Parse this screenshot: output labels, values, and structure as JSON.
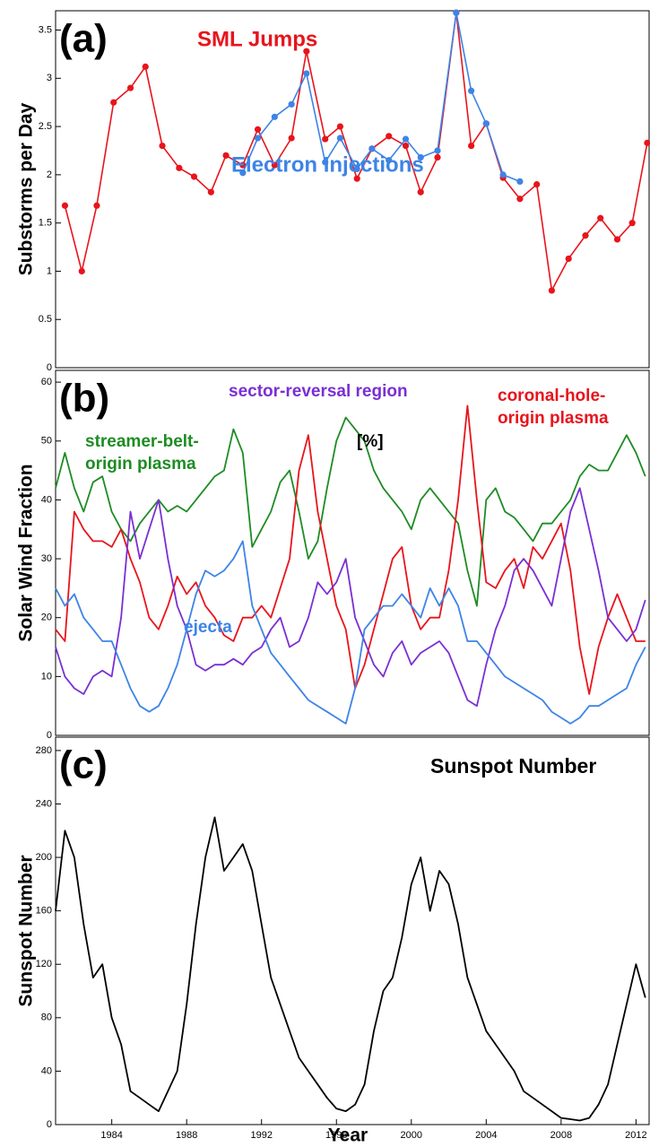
{
  "chart_data": [
    {
      "type": "line",
      "panel_label": "(a)",
      "ylabel": "Substorms per Day",
      "xlim": [
        1981,
        2012.7
      ],
      "ylim": [
        0,
        3.7
      ],
      "yticks": [
        0,
        0.5,
        1,
        1.5,
        2,
        2.5,
        3,
        3.5
      ],
      "markers": true,
      "annotations": [
        {
          "text": "SML Jumps",
          "color": "#e8141c"
        },
        {
          "text": "Electron Injections",
          "color": "#3d84e6"
        }
      ],
      "series": [
        {
          "name": "SML Jumps",
          "color": "#e8141c",
          "x": [
            1981.5,
            1982.4,
            1983.2,
            1984.1,
            1985.0,
            1985.8,
            1986.7,
            1987.6,
            1988.4,
            1989.3,
            1990.1,
            1991.0,
            1991.8,
            1992.7,
            1993.6,
            1994.4,
            1995.4,
            1996.2,
            1997.1,
            1997.9,
            1998.8,
            1999.7,
            2000.5,
            2001.4,
            2002.4,
            2003.2,
            2004.0,
            2004.9,
            2005.8,
            2006.7,
            2007.5,
            2008.4,
            2009.3,
            2010.1,
            2011.0,
            2011.8,
            2012.6
          ],
          "values": [
            1.68,
            1.0,
            1.68,
            2.75,
            2.9,
            3.12,
            2.3,
            2.07,
            1.98,
            1.82,
            2.2,
            2.1,
            2.47,
            2.1,
            2.38,
            3.28,
            2.37,
            2.5,
            1.96,
            2.27,
            2.4,
            2.3,
            1.82,
            2.18,
            3.68,
            2.3,
            2.53,
            1.97,
            1.75,
            1.9,
            0.8,
            1.13,
            1.37,
            1.55,
            1.33,
            1.5,
            2.33
          ]
        },
        {
          "name": "Electron Injections",
          "color": "#3d84e6",
          "x": [
            1991.0,
            1991.8,
            1992.7,
            1993.6,
            1994.4,
            1995.4,
            1996.2,
            1997.1,
            1997.9,
            1998.8,
            1999.7,
            2000.5,
            2001.4,
            2002.4,
            2003.2,
            2004.0,
            2004.9,
            2005.8
          ],
          "values": [
            2.02,
            2.38,
            2.6,
            2.73,
            3.05,
            2.13,
            2.38,
            2.06,
            2.27,
            2.15,
            2.37,
            2.18,
            2.25,
            3.68,
            2.87,
            2.53,
            2.0,
            1.93
          ]
        }
      ]
    },
    {
      "type": "line",
      "panel_label": "(b)",
      "ylabel": "Solar Wind Fraction",
      "unit_label": "[%]",
      "xlim": [
        1981,
        2012.7
      ],
      "ylim": [
        0,
        62
      ],
      "yticks": [
        0,
        10,
        20,
        30,
        40,
        50,
        60
      ],
      "markers": false,
      "annotations": [
        {
          "lines": [
            "sector-reversal region"
          ],
          "color": "#7a2fd3"
        },
        {
          "lines": [
            "coronal-hole-",
            "origin plasma"
          ],
          "color": "#e8141c"
        },
        {
          "lines": [
            "streamer-belt-",
            "origin plasma"
          ],
          "color": "#1e8c23"
        },
        {
          "lines": [
            "ejecta"
          ],
          "color": "#3d84e6"
        }
      ],
      "x": [
        1981,
        1981.5,
        1982,
        1982.5,
        1983,
        1983.5,
        1984,
        1984.5,
        1985,
        1985.5,
        1986,
        1986.5,
        1987,
        1987.5,
        1988,
        1988.5,
        1989,
        1989.5,
        1990,
        1990.5,
        1991,
        1991.5,
        1992,
        1992.5,
        1993,
        1993.5,
        1994,
        1994.5,
        1995,
        1995.5,
        1996,
        1996.5,
        1997,
        1997.5,
        1998,
        1998.5,
        1999,
        1999.5,
        2000,
        2000.5,
        2001,
        2001.5,
        2002,
        2002.5,
        2003,
        2003.5,
        2004,
        2004.5,
        2005,
        2005.5,
        2006,
        2006.5,
        2007,
        2007.5,
        2008,
        2008.5,
        2009,
        2009.5,
        2010,
        2010.5,
        2011,
        2011.5,
        2012,
        2012.5
      ],
      "series": [
        {
          "name": "streamer-belt-origin plasma",
          "color": "#1e8c23",
          "values": [
            42,
            48,
            42,
            38,
            43,
            44,
            38,
            35,
            33,
            36,
            38,
            40,
            38,
            39,
            38,
            40,
            42,
            44,
            45,
            52,
            48,
            32,
            35,
            38,
            43,
            45,
            38,
            30,
            33,
            42,
            50,
            54,
            52,
            50,
            45,
            42,
            40,
            38,
            35,
            40,
            42,
            40,
            38,
            36,
            28,
            22,
            40,
            42,
            38,
            37,
            35,
            33,
            36,
            36,
            38,
            40,
            44,
            46,
            45,
            45,
            48,
            51,
            48,
            44
          ]
        },
        {
          "name": "coronal-hole-origin plasma",
          "color": "#e8141c",
          "values": [
            18,
            16,
            38,
            35,
            33,
            33,
            32,
            35,
            30,
            26,
            20,
            18,
            22,
            27,
            24,
            26,
            22,
            20,
            17,
            16,
            20,
            20,
            22,
            20,
            25,
            30,
            45,
            51,
            38,
            30,
            22,
            18,
            8,
            12,
            18,
            24,
            30,
            32,
            22,
            18,
            20,
            20,
            28,
            40,
            56,
            40,
            26,
            25,
            28,
            30,
            25,
            32,
            30,
            33,
            36,
            28,
            15,
            7,
            15,
            20,
            24,
            20,
            16,
            16
          ]
        },
        {
          "name": "sector-reversal region",
          "color": "#7a2fd3",
          "values": [
            15,
            10,
            8,
            7,
            10,
            11,
            10,
            20,
            38,
            30,
            35,
            40,
            30,
            22,
            18,
            12,
            11,
            12,
            12,
            13,
            12,
            14,
            15,
            18,
            20,
            15,
            16,
            20,
            26,
            24,
            26,
            30,
            20,
            16,
            12,
            10,
            14,
            16,
            12,
            14,
            15,
            16,
            14,
            10,
            6,
            5,
            12,
            18,
            22,
            28,
            30,
            28,
            25,
            22,
            30,
            38,
            42,
            35,
            28,
            20,
            18,
            16,
            18,
            23
          ]
        },
        {
          "name": "ejecta",
          "color": "#3d84e6",
          "values": [
            25,
            22,
            24,
            20,
            18,
            16,
            16,
            12,
            8,
            5,
            4,
            5,
            8,
            12,
            18,
            24,
            28,
            27,
            28,
            30,
            33,
            22,
            18,
            14,
            12,
            10,
            8,
            6,
            5,
            4,
            3,
            2,
            8,
            18,
            20,
            22,
            22,
            24,
            22,
            20,
            25,
            22,
            25,
            22,
            16,
            16,
            14,
            12,
            10,
            9,
            8,
            7,
            6,
            4,
            3,
            2,
            3,
            5,
            5,
            6,
            7,
            8,
            12,
            15
          ]
        }
      ]
    },
    {
      "type": "line",
      "panel_label": "(c)",
      "title": "Sunspot Number",
      "ylabel": "Sunspot Number",
      "xlabel": "Year",
      "xlim": [
        1981,
        2012.7
      ],
      "ylim": [
        0,
        290
      ],
      "yticks": [
        0,
        40,
        80,
        120,
        160,
        200,
        240,
        280
      ],
      "xticks": [
        1984,
        1988,
        1992,
        1996,
        2000,
        2004,
        2008,
        2012
      ],
      "markers": false,
      "x": [
        1981,
        1981.5,
        1982,
        1982.5,
        1983,
        1983.5,
        1984,
        1984.5,
        1985,
        1985.5,
        1986,
        1986.5,
        1987,
        1987.5,
        1988,
        1988.5,
        1989,
        1989.5,
        1990,
        1990.5,
        1991,
        1991.5,
        1992,
        1992.5,
        1993,
        1993.5,
        1994,
        1994.5,
        1995,
        1995.5,
        1996,
        1996.5,
        1997,
        1997.5,
        1998,
        1998.5,
        1999,
        1999.5,
        2000,
        2000.5,
        2001,
        2001.5,
        2002,
        2002.5,
        2003,
        2003.5,
        2004,
        2004.5,
        2005,
        2005.5,
        2006,
        2006.5,
        2007,
        2007.5,
        2008,
        2008.5,
        2009,
        2009.5,
        2010,
        2010.5,
        2011,
        2011.5,
        2012,
        2012.5
      ],
      "series": [
        {
          "name": "Sunspot Number",
          "color": "#000000",
          "values": [
            160,
            220,
            200,
            150,
            110,
            120,
            80,
            60,
            25,
            20,
            15,
            10,
            25,
            40,
            90,
            150,
            200,
            230,
            190,
            200,
            210,
            190,
            150,
            110,
            90,
            70,
            50,
            40,
            30,
            20,
            12,
            10,
            15,
            30,
            70,
            100,
            110,
            140,
            180,
            200,
            160,
            190,
            180,
            150,
            110,
            90,
            70,
            60,
            50,
            40,
            25,
            20,
            15,
            10,
            5,
            4,
            3,
            5,
            15,
            30,
            60,
            90,
            120,
            95
          ]
        }
      ]
    }
  ]
}
